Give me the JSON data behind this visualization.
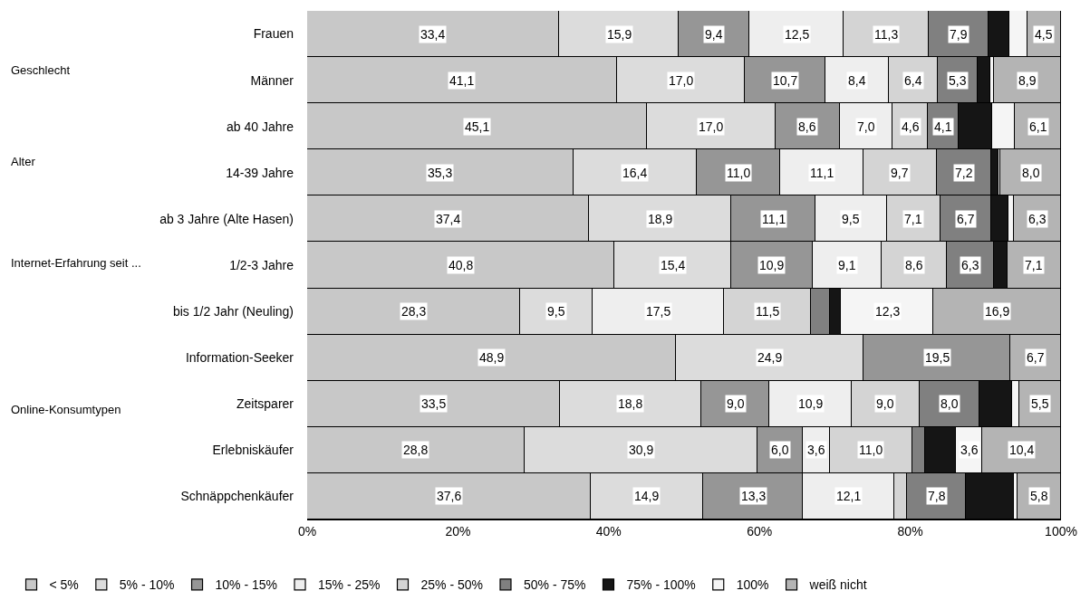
{
  "chart_data": {
    "type": "bar",
    "orientation": "horizontal",
    "stacked": true,
    "categories": [
      "Frauen",
      "Männer",
      "ab 40 Jahre",
      "14-39 Jahre",
      "ab 3 Jahre (Alte Hasen)",
      "1/2-3 Jahre",
      "bis 1/2 Jahr (Neuling)",
      "Information-Seeker",
      "Zeitsparer",
      "Erlebniskäufer",
      "Schnäppchenkäufer"
    ],
    "series": [
      {
        "name": "< 5%",
        "color": "#c8c8c8",
        "values": [
          33.4,
          41.1,
          45.1,
          35.3,
          37.4,
          40.8,
          28.3,
          48.9,
          33.5,
          28.8,
          37.6
        ],
        "value_labels": [
          "33,4",
          "41,1",
          "45,1",
          "35,3",
          "37,4",
          "40,8",
          "28,3",
          "48,9",
          "33,5",
          "28,8",
          "37,6"
        ]
      },
      {
        "name": "5% - 10%",
        "color": "#dcdcdc",
        "values": [
          15.9,
          17.0,
          17.0,
          16.4,
          18.9,
          15.4,
          9.5,
          24.9,
          18.8,
          30.9,
          14.9
        ],
        "value_labels": [
          "15,9",
          "17,0",
          "17,0",
          "16,4",
          "18,9",
          "15,4",
          "9,5",
          "24,9",
          "18,8",
          "30,9",
          "14,9"
        ]
      },
      {
        "name": "10% - 15%",
        "color": "#969696",
        "values": [
          9.4,
          10.7,
          8.6,
          11.0,
          11.1,
          10.9,
          0,
          19.5,
          9.0,
          6.0,
          13.3
        ],
        "value_labels": [
          "9,4",
          "10,7",
          "8,6",
          "11,0",
          "11,1",
          "10,9",
          null,
          "19,5",
          "9,0",
          "6,0",
          "13,3"
        ]
      },
      {
        "name": "15% - 25%",
        "color": "#eeeeee",
        "values": [
          12.5,
          8.4,
          7.0,
          11.1,
          9.5,
          9.1,
          17.5,
          0,
          10.9,
          3.6,
          12.1
        ],
        "value_labels": [
          "12,5",
          "8,4",
          "7,0",
          "11,1",
          "9,5",
          "9,1",
          "17,5",
          null,
          "10,9",
          "3,6",
          "12,1"
        ]
      },
      {
        "name": "25% - 50%",
        "color": "#d4d4d4",
        "values": [
          11.3,
          6.4,
          4.6,
          9.7,
          7.1,
          8.6,
          11.5,
          0,
          9.0,
          11.0,
          1.7
        ],
        "value_labels": [
          "11,3",
          "6,4",
          "4,6",
          "9,7",
          "7,1",
          "8,6",
          "11,5",
          null,
          "9,0",
          "11,0",
          null
        ]
      },
      {
        "name": "50% - 75%",
        "color": "#808080",
        "values": [
          7.9,
          5.3,
          4.1,
          7.2,
          6.7,
          6.3,
          2.5,
          0,
          8.0,
          1.7,
          7.8
        ],
        "value_labels": [
          "7,9",
          "5,3",
          "4,1",
          "7,2",
          "6,7",
          "6,3",
          null,
          null,
          "8,0",
          null,
          "7,8"
        ]
      },
      {
        "name": "75% - 100%",
        "color": "#151515",
        "values": [
          2.8,
          1.7,
          4.5,
          1.0,
          2.3,
          1.8,
          1.5,
          0,
          4.3,
          4.0,
          6.3
        ],
        "value_labels": [
          null,
          null,
          null,
          null,
          null,
          null,
          null,
          null,
          null,
          null,
          null
        ]
      },
      {
        "name": "100%",
        "color": "#f5f5f5",
        "values": [
          2.3,
          0.5,
          3.0,
          0.3,
          0.7,
          0,
          12.3,
          0,
          1.0,
          3.6,
          0.5
        ],
        "value_labels": [
          null,
          null,
          null,
          null,
          null,
          null,
          "12,3",
          null,
          null,
          "3,6",
          null
        ]
      },
      {
        "name": "weiß nicht",
        "color": "#b4b4b4",
        "values": [
          4.5,
          8.9,
          6.1,
          8.0,
          6.3,
          7.1,
          16.9,
          6.7,
          5.5,
          10.4,
          5.8
        ],
        "value_labels": [
          "4,5",
          "8,9",
          "6,1",
          "8,0",
          "6,3",
          "7,1",
          "16,9",
          "6,7",
          "5,5",
          "10,4",
          "5,8"
        ]
      }
    ],
    "xlim": [
      0,
      100
    ],
    "xticks": [
      {
        "value": 0,
        "label": "0%"
      },
      {
        "value": 20,
        "label": "20%"
      },
      {
        "value": 40,
        "label": "40%"
      },
      {
        "value": 60,
        "label": "60%"
      },
      {
        "value": 80,
        "label": "80%"
      },
      {
        "value": 100,
        "label": "100%"
      }
    ],
    "annotations": [
      "Geschlecht",
      "Alter",
      "Internet-Erfahrung seit ...",
      "Online-Konsumtypen"
    ],
    "legend": "bottom"
  }
}
